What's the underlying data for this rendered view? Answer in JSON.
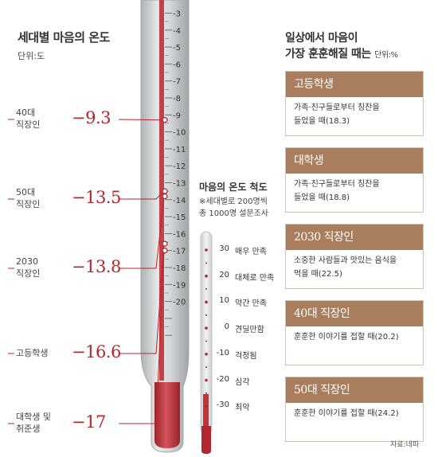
{
  "left_title": "세대별 마음의 온도",
  "left_unit": "단위:도",
  "right_title_line1": "일상에서 마음이",
  "right_title_line2": "가장 훈훈해질 때는",
  "right_unit": "단위:%",
  "scale_title": "마음의 온도 척도",
  "scale_note_line1": "※세대별로 200명씩",
  "scale_note_line2": "총 1000명 설문조사",
  "source": "자료:네파",
  "colors": {
    "red": "#b3262d",
    "brown": "#a87e5d",
    "tube": "#cfd2d4",
    "mercury": "#c6323a"
  },
  "chart_data": [
    {
      "type": "bar",
      "categories": [
        "40대 직장인",
        "50대 직장인",
        "2030 직장인",
        "고등학생",
        "대학생 및 취준생"
      ],
      "label_lines": [
        [
          "40대",
          "직장인"
        ],
        [
          "50대",
          "직장인"
        ],
        [
          "2030",
          "직장인"
        ],
        [
          "고등학생"
        ],
        [
          "대학생 및",
          "취준생"
        ]
      ],
      "values": [
        -9.3,
        -13.5,
        -13.8,
        -16.6,
        -17
      ],
      "value_labels": [
        "−9.3",
        "−13.5",
        "−13.8",
        "−16.6",
        "−17"
      ],
      "ticks": [
        "-3",
        "-4",
        "-5",
        "-6",
        "-7",
        "-8",
        "-9",
        "-10",
        "-11",
        "-12",
        "-13",
        "-14",
        "-15",
        "-16",
        "-17",
        "-18",
        "-19",
        "-20"
      ],
      "title": "세대별 마음의 온도",
      "unit": "단위:도"
    },
    {
      "type": "bar",
      "title": "마음의 온도 척도",
      "scale_values": [
        "30",
        "20",
        "10",
        "0",
        "-10",
        "-20",
        "-30"
      ],
      "scale_labels": [
        "매우 만족",
        "대체로 만족",
        "약간 만족",
        "견딜만함",
        "걱정됨",
        "심각",
        "최악"
      ]
    },
    {
      "type": "table",
      "title": "일상에서 마음이 가장 훈훈해질 때는",
      "unit": "단위:%",
      "rows": [
        {
          "group": "고등학생",
          "line1": "가족·친구들로부터 칭찬을",
          "line2": "들었을 때(18.3)",
          "value": 18.3
        },
        {
          "group": "대학생",
          "line1": "가족·친구들로부터 칭찬을",
          "line2": "들었을 때(18.8)",
          "value": 18.8
        },
        {
          "group": "2030 직장인",
          "line1": "소중한 사람들과 맛있는 음식을",
          "line2": "먹을 때(22.5)",
          "value": 22.5
        },
        {
          "group": "40대 직장인",
          "line1": "훈훈한 이야기를 접할 때(20.2)",
          "line2": "",
          "value": 20.2
        },
        {
          "group": "50대 직장인",
          "line1": "훈훈한 이야기를 접할 때(24.2)",
          "line2": "",
          "value": 24.2
        }
      ]
    }
  ]
}
